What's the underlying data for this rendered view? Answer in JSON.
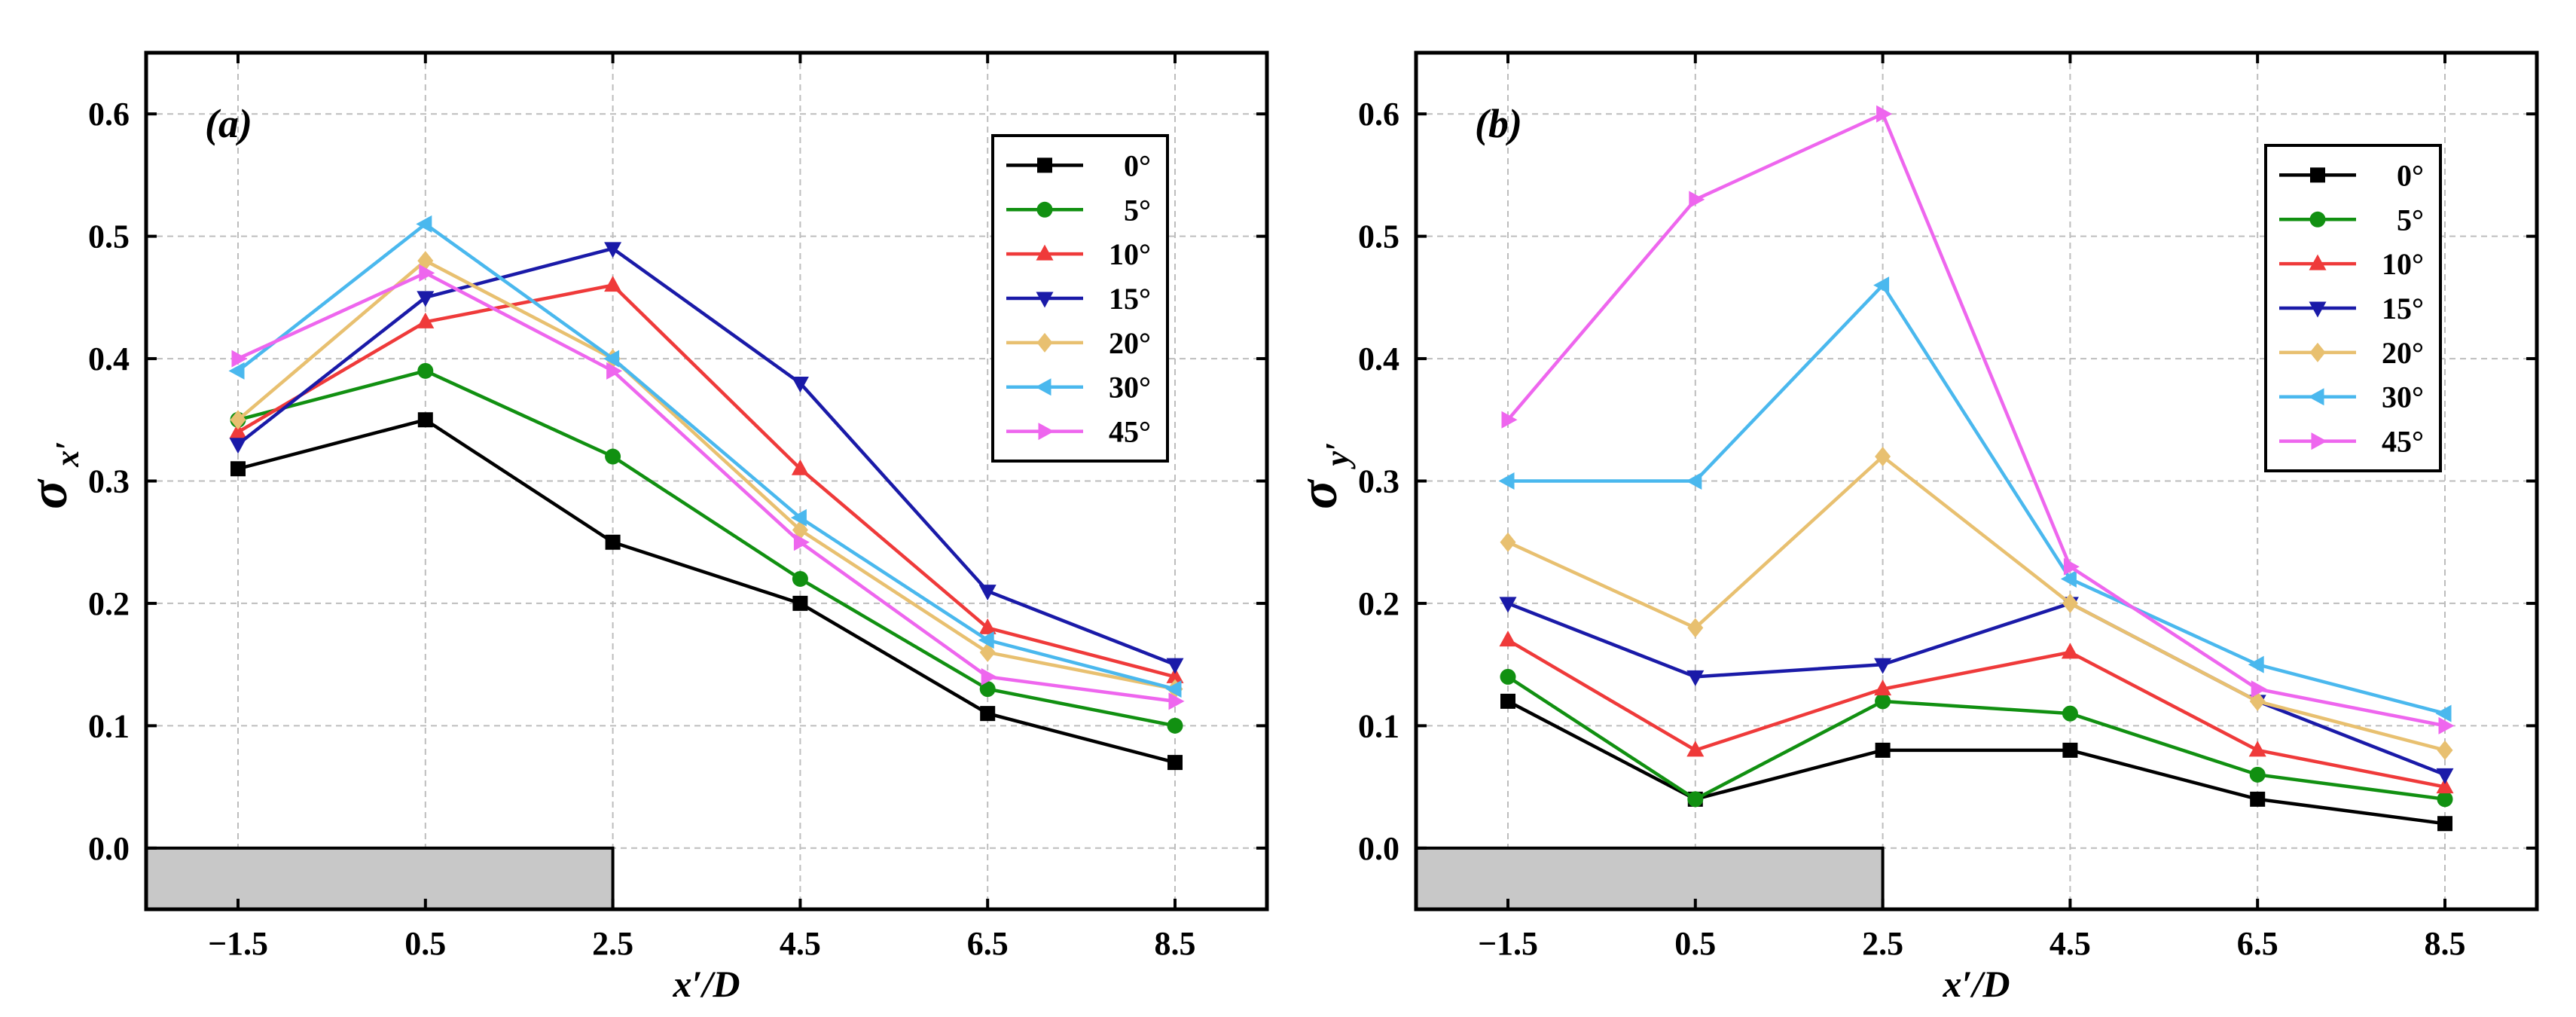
{
  "chart_data": [
    {
      "type": "line",
      "panel_label": "(a)",
      "ylabel_symbol": "σ",
      "ylabel_subscript": "x′",
      "xlabel": "x′/D",
      "categories": [
        "−1.5",
        "0.5",
        "2.5",
        "4.5",
        "6.5",
        "8.5"
      ],
      "y_ticks": [
        "0.0",
        "0.1",
        "0.2",
        "0.3",
        "0.4",
        "0.5",
        "0.6"
      ],
      "ylim": [
        -0.05,
        0.65
      ],
      "grid": true,
      "legend_position": "top-right",
      "series": [
        {
          "name": "0°",
          "color": "#000000",
          "marker": "square",
          "values": [
            0.31,
            0.35,
            0.25,
            0.2,
            0.11,
            0.07
          ]
        },
        {
          "name": "5°",
          "color": "#119011",
          "marker": "circle",
          "values": [
            0.35,
            0.39,
            0.32,
            0.22,
            0.13,
            0.1
          ]
        },
        {
          "name": "10°",
          "color": "#ef3a3a",
          "marker": "triangle-up",
          "values": [
            0.34,
            0.43,
            0.46,
            0.31,
            0.18,
            0.14
          ]
        },
        {
          "name": "15°",
          "color": "#1a1aa8",
          "marker": "triangle-down",
          "values": [
            0.33,
            0.45,
            0.49,
            0.38,
            0.21,
            0.15
          ]
        },
        {
          "name": "20°",
          "color": "#e8c070",
          "marker": "diamond",
          "values": [
            0.35,
            0.48,
            0.4,
            0.26,
            0.16,
            0.13
          ]
        },
        {
          "name": "30°",
          "color": "#4ab8ee",
          "marker": "triangle-left",
          "values": [
            0.39,
            0.51,
            0.4,
            0.27,
            0.17,
            0.13
          ]
        },
        {
          "name": "45°",
          "color": "#ee66ee",
          "marker": "triangle-right",
          "values": [
            0.4,
            0.47,
            0.39,
            0.25,
            0.14,
            0.12
          ]
        }
      ]
    },
    {
      "type": "line",
      "panel_label": "(b)",
      "ylabel_symbol": "σ",
      "ylabel_subscript": "y′",
      "xlabel": "x′/D",
      "categories": [
        "−1.5",
        "0.5",
        "2.5",
        "4.5",
        "6.5",
        "8.5"
      ],
      "y_ticks": [
        "0.0",
        "0.1",
        "0.2",
        "0.3",
        "0.4",
        "0.5",
        "0.6"
      ],
      "ylim": [
        -0.05,
        0.65
      ],
      "grid": true,
      "legend_position": "top-right",
      "series": [
        {
          "name": "0°",
          "color": "#000000",
          "marker": "square",
          "values": [
            0.12,
            0.04,
            0.08,
            0.08,
            0.04,
            0.02
          ]
        },
        {
          "name": "5°",
          "color": "#119011",
          "marker": "circle",
          "values": [
            0.14,
            0.04,
            0.12,
            0.11,
            0.06,
            0.04
          ]
        },
        {
          "name": "10°",
          "color": "#ef3a3a",
          "marker": "triangle-up",
          "values": [
            0.17,
            0.08,
            0.13,
            0.16,
            0.08,
            0.05
          ]
        },
        {
          "name": "15°",
          "color": "#1a1aa8",
          "marker": "triangle-down",
          "values": [
            0.2,
            0.14,
            0.15,
            0.2,
            0.12,
            0.06
          ]
        },
        {
          "name": "20°",
          "color": "#e8c070",
          "marker": "diamond",
          "values": [
            0.25,
            0.18,
            0.32,
            0.2,
            0.12,
            0.08
          ]
        },
        {
          "name": "30°",
          "color": "#4ab8ee",
          "marker": "triangle-left",
          "values": [
            0.3,
            0.3,
            0.46,
            0.22,
            0.15,
            0.11
          ]
        },
        {
          "name": "45°",
          "color": "#ee66ee",
          "marker": "triangle-right",
          "values": [
            0.35,
            0.53,
            0.6,
            0.23,
            0.13,
            0.1
          ]
        }
      ]
    }
  ]
}
